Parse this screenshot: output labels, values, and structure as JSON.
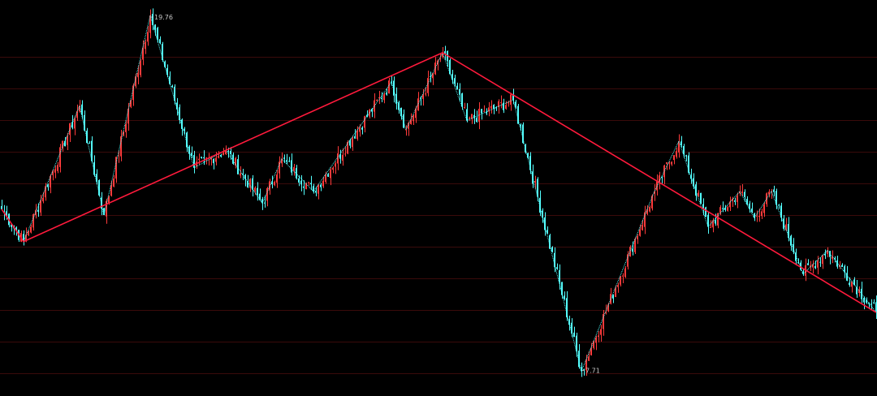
{
  "chart_data": {
    "type": "candlestick",
    "title": "",
    "xlabel": "",
    "ylabel": "",
    "ylim": [
      7.2,
      20.2
    ],
    "grid": true,
    "colors": {
      "background": "#000000",
      "grid": "#3a0a0a",
      "up": "#ff3b3b",
      "down": "#54ffff",
      "zigzag": "#54ffff",
      "trendline": "#ff1a3c",
      "label": "#c8c8c8"
    },
    "annotations": [
      {
        "name": "high",
        "text": "19.76",
        "x": 61,
        "y": 19.76
      },
      {
        "name": "low",
        "text": "7.71",
        "x": 238,
        "y": 7.71
      }
    ],
    "pivots": [
      {
        "x": 0,
        "y": 13.2
      },
      {
        "x": 9,
        "y": 12.1
      },
      {
        "x": 32,
        "y": 16.7
      },
      {
        "x": 42,
        "y": 13.0
      },
      {
        "x": 61,
        "y": 19.76
      },
      {
        "x": 79,
        "y": 14.6
      },
      {
        "x": 92,
        "y": 15.2
      },
      {
        "x": 107,
        "y": 13.4
      },
      {
        "x": 115,
        "y": 14.9
      },
      {
        "x": 128,
        "y": 13.8
      },
      {
        "x": 160,
        "y": 17.5
      },
      {
        "x": 166,
        "y": 15.9
      },
      {
        "x": 181,
        "y": 18.5
      },
      {
        "x": 191,
        "y": 16.2
      },
      {
        "x": 210,
        "y": 16.9
      },
      {
        "x": 238,
        "y": 7.71
      },
      {
        "x": 268,
        "y": 13.8
      },
      {
        "x": 278,
        "y": 15.5
      },
      {
        "x": 290,
        "y": 12.6
      },
      {
        "x": 303,
        "y": 13.8
      },
      {
        "x": 309,
        "y": 12.9
      },
      {
        "x": 316,
        "y": 13.8
      },
      {
        "x": 329,
        "y": 11.0
      },
      {
        "x": 339,
        "y": 11.8
      },
      {
        "x": 359,
        "y": 9.7
      }
    ],
    "trendline": [
      {
        "x": 0,
        "y": 13.2
      },
      {
        "x": 9,
        "y": 12.1
      },
      {
        "x": 181,
        "y": 18.5
      },
      {
        "x": 359,
        "y": 9.7
      }
    ]
  }
}
